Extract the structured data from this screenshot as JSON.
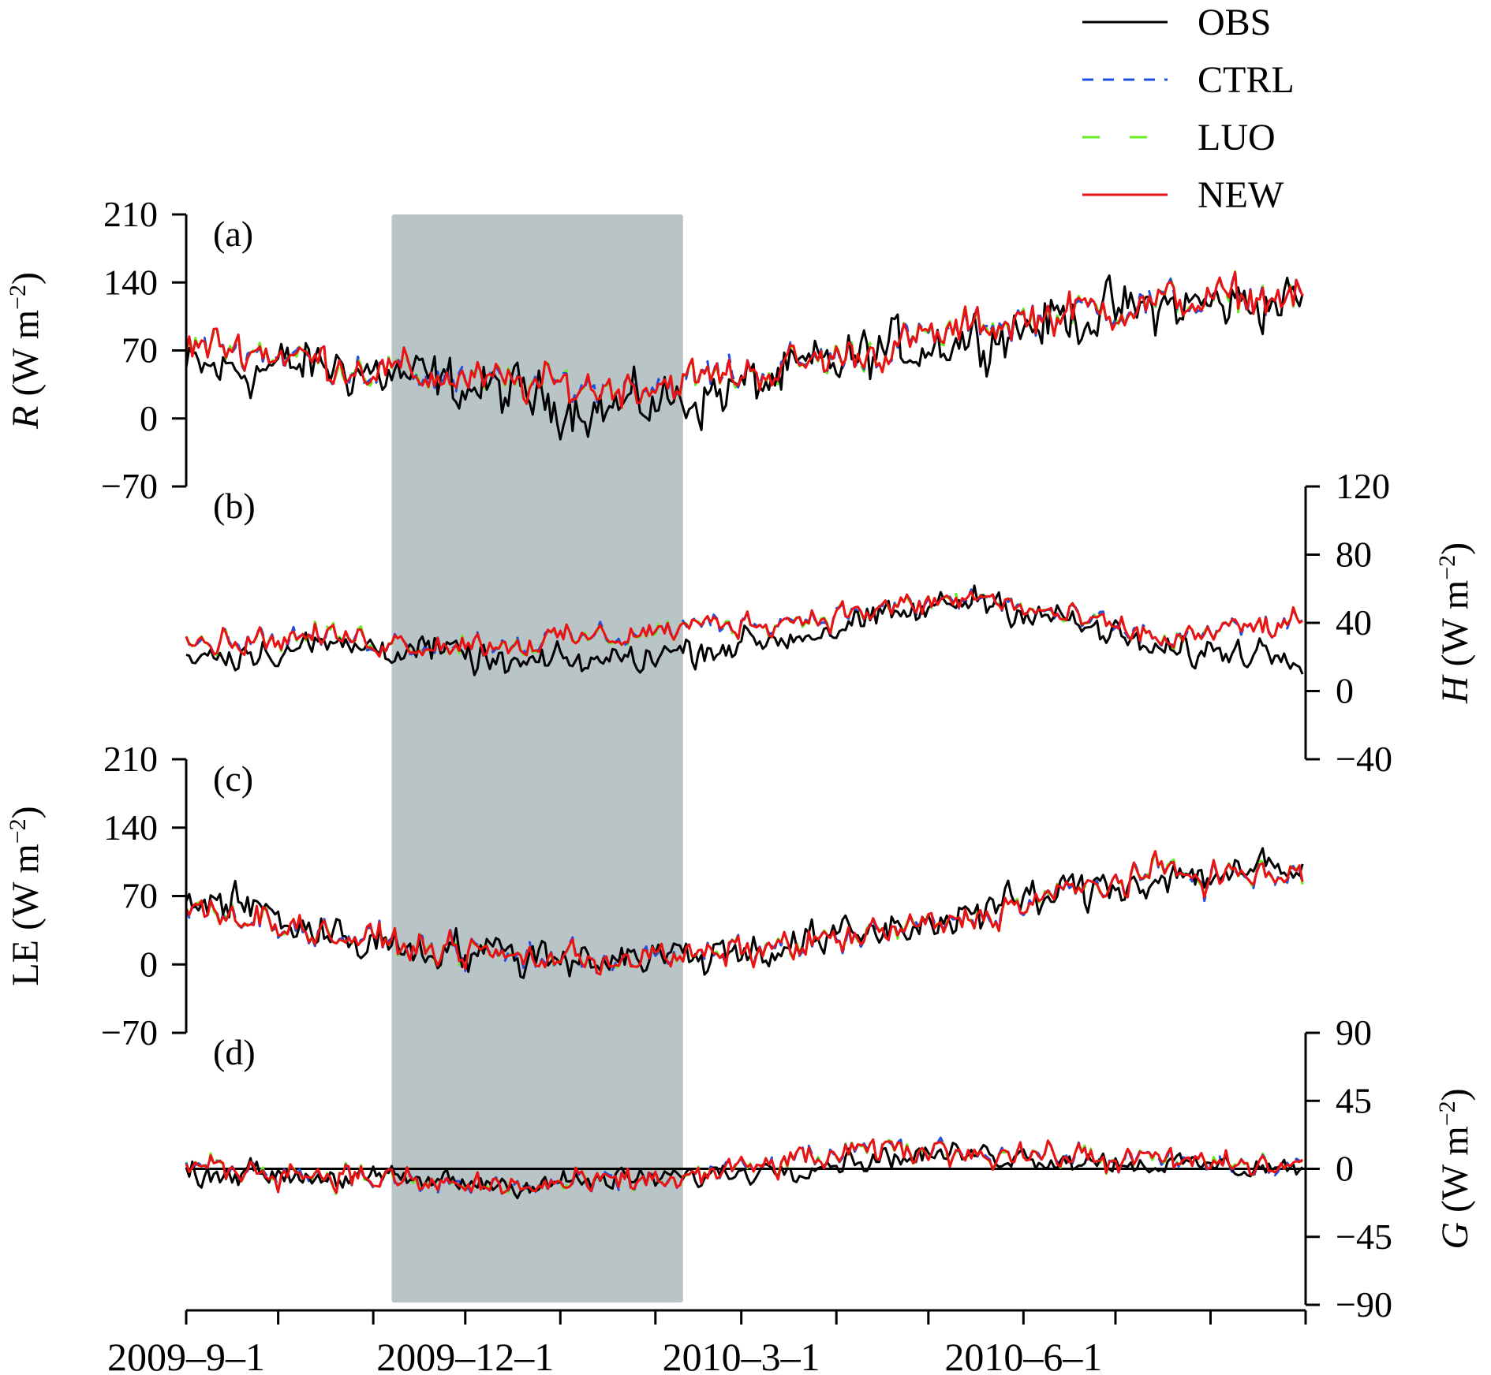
{
  "chart_data": {
    "type": "line",
    "x_axis": {
      "start": "2009-9-1",
      "end": "2010-8-31",
      "tick_labels": [
        "2009–9–1",
        "2009–12–1",
        "2010–3–1",
        "2010–6–1"
      ],
      "tick_dates": [
        "2009-09-01",
        "2009-10-01",
        "2009-11-01",
        "2009-12-01",
        "2010-01-01",
        "2010-02-01",
        "2010-03-01",
        "2010-04-01",
        "2010-05-01",
        "2010-06-01",
        "2010-07-01",
        "2010-08-01",
        "2010-09-01"
      ]
    },
    "shaded_period": {
      "start": "2009-11-07",
      "end": "2010-02-10",
      "color": "#b9c4c6"
    },
    "legend": {
      "placement": "top-right",
      "entries": [
        {
          "name": "OBS",
          "color": "#000000",
          "dash": "solid"
        },
        {
          "name": "CTRL",
          "color": "#1f4fe0",
          "dash": "dashed"
        },
        {
          "name": "LUO",
          "color": "#66ee22",
          "dash": "long-dashed"
        },
        {
          "name": "NEW",
          "color": "#ee1111",
          "dash": "solid"
        }
      ]
    },
    "panels": [
      {
        "id": "a",
        "label": "(a)",
        "variable": "R",
        "unit": " (W m",
        "exp": "−2",
        "unit_close": ")",
        "axis_side": "left",
        "ylim": [
          -70,
          210
        ],
        "yticks": [
          -70,
          0,
          70,
          140,
          210
        ],
        "ytick_labels": [
          "−70",
          "0",
          "70",
          "140",
          "210"
        ],
        "zero_line": false,
        "obs_monthly": [
          50,
          55,
          40,
          25,
          10,
          22,
          45,
          70,
          85,
          105,
          115,
          120
        ],
        "model_monthly": [
          75,
          58,
          45,
          35,
          32,
          40,
          55,
          72,
          95,
          110,
          120,
          125
        ],
        "obs_noise": 22,
        "model_noise": 16
      },
      {
        "id": "b",
        "label": "(b)",
        "variable": "H",
        "unit": " (W m",
        "exp": "−2",
        "unit_close": ")",
        "axis_side": "right",
        "ylim": [
          -40,
          120
        ],
        "yticks": [
          -40,
          0,
          40,
          80,
          120
        ],
        "ytick_labels": [
          "−40",
          "0",
          "40",
          "80",
          "120"
        ],
        "zero_line": false,
        "obs_monthly": [
          22,
          27,
          25,
          15,
          18,
          25,
          32,
          42,
          55,
          40,
          22,
          24
        ],
        "model_monthly": [
          30,
          32,
          28,
          28,
          32,
          38,
          42,
          48,
          55,
          42,
          30,
          38
        ],
        "obs_noise": 7,
        "model_noise": 6
      },
      {
        "id": "c",
        "label": "(c)",
        "variable": "LE",
        "unit": " (W m",
        "exp": "−2",
        "unit_close": ")",
        "axis_side": "left",
        "ylim": [
          -70,
          210
        ],
        "yticks": [
          -70,
          0,
          70,
          140,
          210
        ],
        "ytick_labels": [
          "−70",
          "0",
          "70",
          "140",
          "210"
        ],
        "zero_line": false,
        "obs_monthly": [
          65,
          30,
          18,
          10,
          8,
          10,
          20,
          35,
          55,
          75,
          90,
          95
        ],
        "model_monthly": [
          55,
          30,
          18,
          8,
          6,
          8,
          20,
          32,
          50,
          75,
          95,
          90
        ],
        "obs_noise": 16,
        "model_noise": 12
      },
      {
        "id": "d",
        "label": "(d)",
        "variable": "G",
        "unit": " (W m",
        "exp": "−2",
        "unit_close": ")",
        "axis_side": "right",
        "ylim": [
          -90,
          90
        ],
        "yticks": [
          -90,
          -45,
          0,
          45,
          90
        ],
        "ytick_labels": [
          "−90",
          "−45",
          "0",
          "45",
          "90"
        ],
        "zero_line": true,
        "obs_monthly": [
          -2,
          -5,
          -8,
          -10,
          -8,
          -5,
          2,
          8,
          10,
          6,
          3,
          1
        ],
        "model_monthly": [
          0,
          -3,
          -10,
          -12,
          -10,
          -5,
          5,
          12,
          12,
          8,
          5,
          2
        ],
        "obs_noise": 6,
        "model_noise": 7
      }
    ]
  }
}
